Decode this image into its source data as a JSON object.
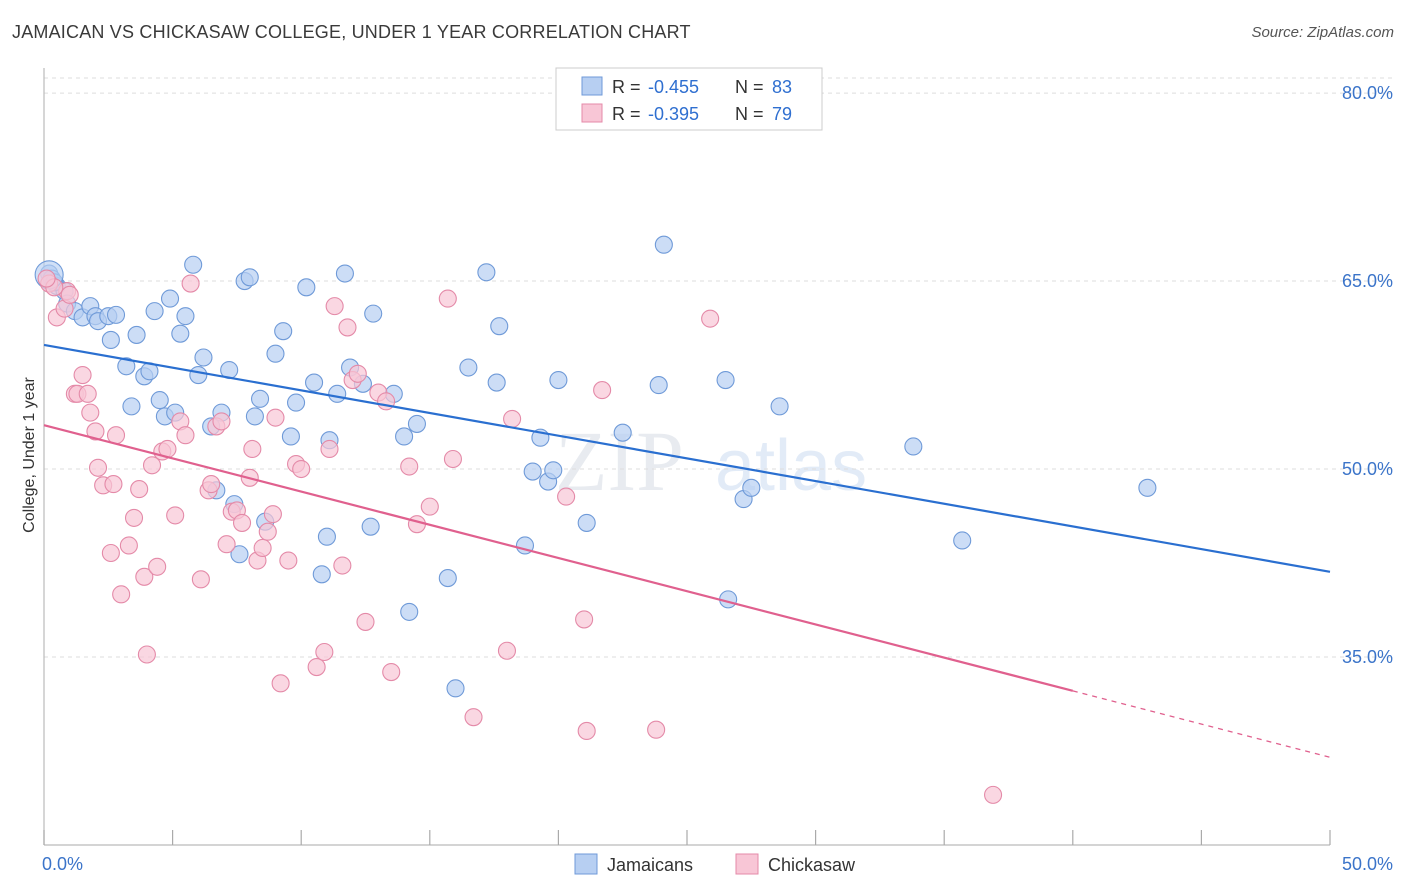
{
  "header": {
    "title": "JAMAICAN VS CHICKASAW COLLEGE, UNDER 1 YEAR CORRELATION CHART",
    "source": "Source: ZipAtlas.com"
  },
  "chart_data": {
    "type": "scatter",
    "title": "JAMAICAN VS CHICKASAW COLLEGE, UNDER 1 YEAR CORRELATION CHART",
    "xlabel": "",
    "ylabel": "College, Under 1 year",
    "xlim": [
      0,
      50
    ],
    "ylim": [
      20,
      82
    ],
    "x_tick_labels": [
      "0.0%",
      "50.0%"
    ],
    "y_ticks": [
      35,
      50,
      65,
      80
    ],
    "y_tick_labels": [
      "35.0%",
      "50.0%",
      "65.0%",
      "80.0%"
    ],
    "grid": true,
    "legend_position": "top-center",
    "watermark": "ZIPatlas",
    "colors": {
      "jamaicans_fill": "#b7cff2",
      "jamaicans_stroke": "#6f9ad8",
      "jamaicans_line": "#2a6fd0",
      "chickasaw_fill": "#f8c6d6",
      "chickasaw_stroke": "#e48aa8",
      "chickasaw_line": "#e0608e",
      "tick_text": "#3b74c9"
    },
    "stats_legend": [
      {
        "r_label": "R =",
        "r_value": "-0.455",
        "n_label": "N =",
        "n_value": "83"
      },
      {
        "r_label": "R =",
        "r_value": "-0.395",
        "n_label": "N =",
        "n_value": "79"
      }
    ],
    "series": [
      {
        "name": "Jamaicans",
        "trend": {
          "x": [
            0,
            50
          ],
          "y": [
            59.9,
            41.8
          ]
        },
        "points": [
          [
            0.2,
            65.6
          ],
          [
            0.3,
            65.2
          ],
          [
            0.5,
            64.6
          ],
          [
            0.8,
            64.2
          ],
          [
            0.9,
            63.2
          ],
          [
            1.2,
            62.6
          ],
          [
            1.5,
            62.1
          ],
          [
            1.8,
            63.0
          ],
          [
            2.0,
            62.2
          ],
          [
            2.1,
            61.8
          ],
          [
            2.6,
            60.3
          ],
          [
            2.5,
            62.2
          ],
          [
            2.8,
            62.3
          ],
          [
            3.2,
            58.2
          ],
          [
            3.4,
            55.0
          ],
          [
            3.6,
            60.7
          ],
          [
            3.9,
            57.4
          ],
          [
            4.1,
            57.8
          ],
          [
            4.3,
            62.6
          ],
          [
            4.5,
            55.5
          ],
          [
            4.7,
            54.2
          ],
          [
            4.9,
            63.6
          ],
          [
            5.1,
            54.5
          ],
          [
            5.3,
            60.8
          ],
          [
            5.5,
            62.2
          ],
          [
            5.8,
            66.3
          ],
          [
            6.0,
            57.5
          ],
          [
            6.2,
            58.9
          ],
          [
            6.5,
            53.4
          ],
          [
            6.7,
            48.3
          ],
          [
            6.9,
            54.5
          ],
          [
            7.2,
            57.9
          ],
          [
            7.4,
            47.2
          ],
          [
            7.6,
            43.2
          ],
          [
            7.8,
            65.0
          ],
          [
            8.0,
            65.3
          ],
          [
            8.2,
            54.2
          ],
          [
            8.4,
            55.6
          ],
          [
            8.6,
            45.8
          ],
          [
            9.0,
            59.2
          ],
          [
            9.3,
            61.0
          ],
          [
            9.6,
            52.6
          ],
          [
            9.8,
            55.3
          ],
          [
            10.2,
            64.5
          ],
          [
            10.5,
            56.9
          ],
          [
            10.8,
            41.6
          ],
          [
            11.0,
            44.6
          ],
          [
            11.1,
            52.3
          ],
          [
            11.4,
            56.0
          ],
          [
            11.7,
            65.6
          ],
          [
            11.9,
            58.1
          ],
          [
            12.4,
            56.8
          ],
          [
            12.7,
            45.4
          ],
          [
            12.8,
            62.4
          ],
          [
            13.6,
            56.0
          ],
          [
            14.0,
            52.6
          ],
          [
            14.2,
            38.6
          ],
          [
            14.5,
            53.6
          ],
          [
            15.7,
            41.3
          ],
          [
            16.0,
            32.5
          ],
          [
            16.5,
            58.1
          ],
          [
            17.2,
            65.7
          ],
          [
            17.6,
            56.9
          ],
          [
            17.7,
            61.4
          ],
          [
            18.7,
            43.9
          ],
          [
            19.0,
            49.8
          ],
          [
            19.3,
            52.5
          ],
          [
            19.6,
            49.0
          ],
          [
            19.8,
            49.9
          ],
          [
            20.0,
            57.1
          ],
          [
            21.1,
            45.7
          ],
          [
            22.5,
            52.9
          ],
          [
            23.9,
            56.7
          ],
          [
            24.1,
            67.9
          ],
          [
            26.5,
            57.1
          ],
          [
            26.6,
            39.6
          ],
          [
            27.2,
            47.6
          ],
          [
            27.5,
            48.5
          ],
          [
            28.6,
            55.0
          ],
          [
            33.8,
            51.8
          ],
          [
            35.7,
            44.3
          ],
          [
            42.9,
            48.5
          ],
          [
            0.4,
            64.9
          ]
        ]
      },
      {
        "name": "Chickasaw",
        "trend": {
          "x": [
            0,
            40
          ],
          "y": [
            53.5,
            32.3
          ]
        },
        "trend_dashed": {
          "x": [
            40,
            50
          ],
          "y": [
            32.3,
            27.0
          ]
        },
        "points": [
          [
            0.2,
            64.8
          ],
          [
            0.5,
            62.1
          ],
          [
            0.8,
            62.8
          ],
          [
            0.9,
            64.2
          ],
          [
            1.2,
            56.0
          ],
          [
            1.3,
            56.0
          ],
          [
            1.5,
            57.5
          ],
          [
            1.7,
            56.0
          ],
          [
            1.8,
            54.5
          ],
          [
            2.0,
            53.0
          ],
          [
            2.1,
            50.1
          ],
          [
            2.3,
            48.7
          ],
          [
            2.6,
            43.3
          ],
          [
            2.7,
            48.8
          ],
          [
            2.8,
            52.7
          ],
          [
            3.0,
            40.0
          ],
          [
            3.3,
            43.9
          ],
          [
            3.5,
            46.1
          ],
          [
            3.7,
            48.4
          ],
          [
            3.9,
            41.4
          ],
          [
            4.0,
            35.2
          ],
          [
            4.2,
            50.3
          ],
          [
            4.4,
            42.2
          ],
          [
            4.6,
            51.4
          ],
          [
            4.8,
            51.6
          ],
          [
            5.1,
            46.3
          ],
          [
            5.3,
            53.8
          ],
          [
            5.5,
            52.7
          ],
          [
            5.7,
            64.8
          ],
          [
            6.1,
            41.2
          ],
          [
            6.4,
            48.3
          ],
          [
            6.5,
            48.8
          ],
          [
            6.7,
            53.4
          ],
          [
            6.9,
            53.8
          ],
          [
            7.1,
            44.0
          ],
          [
            7.3,
            46.6
          ],
          [
            7.5,
            46.7
          ],
          [
            7.7,
            45.7
          ],
          [
            8.0,
            49.3
          ],
          [
            8.1,
            51.6
          ],
          [
            8.3,
            42.7
          ],
          [
            8.5,
            43.7
          ],
          [
            8.7,
            45.0
          ],
          [
            8.9,
            46.4
          ],
          [
            9.0,
            54.1
          ],
          [
            9.2,
            32.9
          ],
          [
            9.5,
            42.7
          ],
          [
            9.8,
            50.4
          ],
          [
            10.0,
            50.0
          ],
          [
            10.6,
            34.2
          ],
          [
            10.9,
            35.4
          ],
          [
            11.1,
            51.6
          ],
          [
            11.3,
            63.0
          ],
          [
            11.6,
            42.3
          ],
          [
            11.8,
            61.3
          ],
          [
            12.0,
            57.1
          ],
          [
            12.2,
            57.6
          ],
          [
            12.5,
            37.8
          ],
          [
            13.0,
            56.1
          ],
          [
            13.3,
            55.4
          ],
          [
            13.5,
            33.8
          ],
          [
            14.2,
            50.2
          ],
          [
            14.5,
            45.6
          ],
          [
            15.0,
            47.0
          ],
          [
            15.7,
            63.6
          ],
          [
            15.9,
            50.8
          ],
          [
            16.7,
            30.2
          ],
          [
            18.0,
            35.5
          ],
          [
            18.2,
            54.0
          ],
          [
            20.3,
            47.8
          ],
          [
            21.0,
            38.0
          ],
          [
            21.1,
            29.1
          ],
          [
            21.7,
            56.3
          ],
          [
            23.8,
            29.2
          ],
          [
            25.9,
            62.0
          ],
          [
            36.9,
            24.0
          ],
          [
            0.4,
            64.5
          ],
          [
            1.0,
            63.9
          ],
          [
            0.1,
            65.2
          ]
        ]
      }
    ]
  },
  "bottom_legend": [
    {
      "label": "Jamaicans"
    },
    {
      "label": "Chickasaw"
    }
  ]
}
